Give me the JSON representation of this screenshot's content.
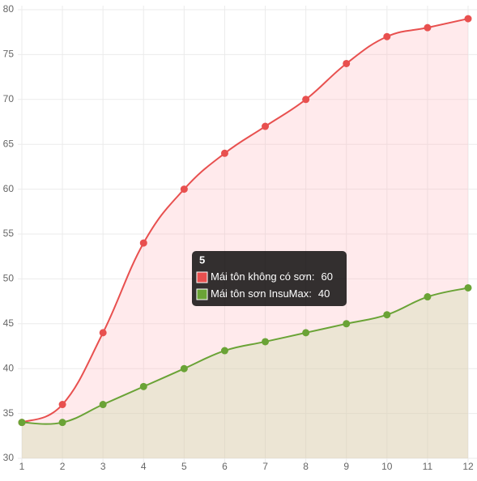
{
  "chart_data": {
    "type": "line",
    "x": [
      1,
      2,
      3,
      4,
      5,
      6,
      7,
      8,
      9,
      10,
      11,
      12
    ],
    "xlim": [
      1,
      12
    ],
    "xticks": [
      1,
      2,
      3,
      4,
      5,
      6,
      7,
      8,
      9,
      10,
      11,
      12
    ],
    "ylim": [
      30,
      80
    ],
    "yticks": [
      30,
      35,
      40,
      45,
      50,
      55,
      60,
      65,
      70,
      75,
      80
    ],
    "grid": true,
    "series": [
      {
        "name": "Mái tôn không có sơn",
        "color": "#e8504f",
        "fill": "rgba(255,180,185,0.28)",
        "values": [
          34,
          36,
          44,
          54,
          60,
          64,
          67,
          70,
          74,
          77,
          78,
          79
        ]
      },
      {
        "name": "Mái tôn sơn InsuMax",
        "color": "#6aa336",
        "fill": "rgba(200,220,170,0.35)",
        "values": [
          34,
          34,
          36,
          38,
          40,
          42,
          43,
          44,
          45,
          46,
          48,
          49
        ]
      }
    ],
    "tooltip": {
      "title": "5",
      "labels": [
        "Mái tôn không có sơn:",
        "Mái tôn sơn InsuMax:"
      ]
    }
  }
}
